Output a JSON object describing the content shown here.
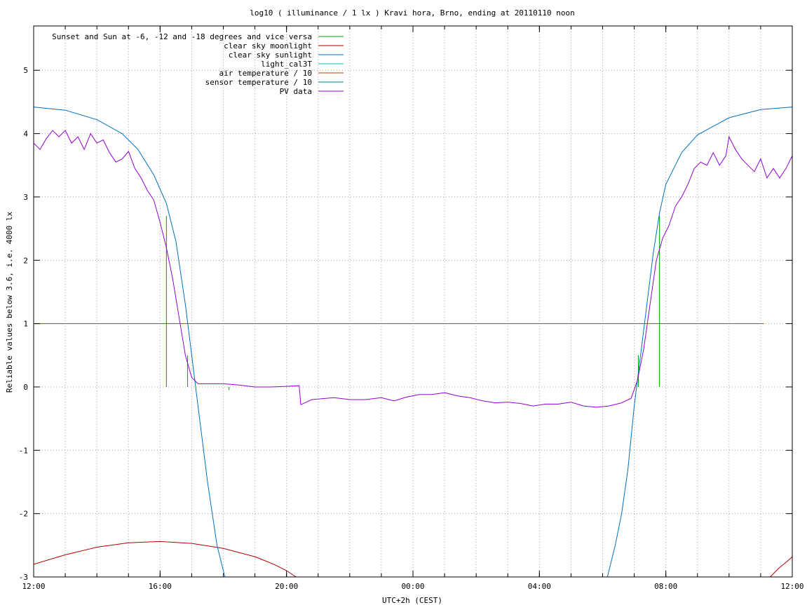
{
  "chart_data": {
    "type": "line",
    "title": "log10 ( illuminance / 1 lx ) Kravi hora, Brno, ending at 20110110 noon",
    "xlabel": "UTC+2h (CEST)",
    "ylabel": "Reliable values below 3.6, i.e. 4000 lx",
    "xlim": [
      12,
      36
    ],
    "ylim": [
      -3,
      5.7
    ],
    "grid": true,
    "legend_position": "top-left",
    "x_ticks": [
      {
        "value": 12,
        "label": "12:00"
      },
      {
        "value": 16,
        "label": "16:00"
      },
      {
        "value": 20,
        "label": "20:00"
      },
      {
        "value": 24,
        "label": "00:00"
      },
      {
        "value": 28,
        "label": "04:00"
      },
      {
        "value": 32,
        "label": "08:00"
      },
      {
        "value": 36,
        "label": "12:00"
      }
    ],
    "y_ticks": [
      {
        "value": -3,
        "label": "-3"
      },
      {
        "value": -2,
        "label": "-2"
      },
      {
        "value": -1,
        "label": "-1"
      },
      {
        "value": 0,
        "label": "0"
      },
      {
        "value": 1,
        "label": "1"
      },
      {
        "value": 2,
        "label": "2"
      },
      {
        "value": 3,
        "label": "3"
      },
      {
        "value": 4,
        "label": "4"
      },
      {
        "value": 5,
        "label": "5"
      }
    ],
    "series": [
      {
        "name": "Sunset and Sun at -6, -12 and -18 degrees and vice versa",
        "color": "#00a000",
        "style": "impulses",
        "points": [
          [
            16.2,
            2.7
          ],
          [
            16.87,
            0.5
          ],
          [
            17.52,
            0
          ],
          [
            18.18,
            -0.05
          ],
          [
            29.85,
            0
          ],
          [
            30.5,
            0
          ],
          [
            31.13,
            0.5
          ],
          [
            31.8,
            2.7
          ]
        ]
      },
      {
        "name": "clear sky moonlight",
        "color": "#b00000",
        "style": "line",
        "segments": [
          [
            [
              12,
              -2.8
            ],
            [
              13,
              -2.65
            ],
            [
              14,
              -2.53
            ],
            [
              15,
              -2.46
            ],
            [
              16,
              -2.44
            ],
            [
              17,
              -2.47
            ],
            [
              18,
              -2.55
            ],
            [
              19,
              -2.68
            ],
            [
              19.6,
              -2.8
            ],
            [
              20,
              -2.9
            ],
            [
              20.3,
              -3.0
            ]
          ],
          [
            [
              35.3,
              -3.0
            ],
            [
              35.6,
              -2.85
            ],
            [
              35.85,
              -2.75
            ],
            [
              36,
              -2.68
            ]
          ]
        ]
      },
      {
        "name": "clear sky sunlight",
        "color": "#0070c0",
        "style": "line",
        "segments": [
          [
            [
              12,
              4.42
            ],
            [
              13,
              4.37
            ],
            [
              14,
              4.22
            ],
            [
              14.8,
              4.0
            ],
            [
              15.3,
              3.75
            ],
            [
              15.8,
              3.35
            ],
            [
              16.2,
              2.9
            ],
            [
              16.5,
              2.3
            ],
            [
              16.8,
              1.3
            ],
            [
              17.0,
              0.5
            ],
            [
              17.2,
              -0.3
            ],
            [
              17.5,
              -1.5
            ],
            [
              17.8,
              -2.5
            ],
            [
              18.05,
              -3.0
            ]
          ],
          [
            [
              30.15,
              -3.0
            ],
            [
              30.4,
              -2.5
            ],
            [
              30.6,
              -2.0
            ],
            [
              30.8,
              -1.3
            ],
            [
              31.0,
              -0.3
            ],
            [
              31.2,
              0.5
            ],
            [
              31.4,
              1.3
            ],
            [
              31.6,
              2.1
            ],
            [
              31.8,
              2.75
            ],
            [
              32.0,
              3.2
            ],
            [
              32.5,
              3.7
            ],
            [
              33,
              3.98
            ],
            [
              34,
              4.25
            ],
            [
              35,
              4.38
            ],
            [
              36,
              4.42
            ]
          ]
        ]
      },
      {
        "name": "light_cal3T",
        "color": "#00c0c0",
        "style": "line",
        "segments": []
      },
      {
        "name": "air temperature / 10",
        "color": "#c04000",
        "style": "line",
        "segments": [
          [
            [
              12,
              1.0
            ],
            [
              35.1,
              1.0
            ]
          ]
        ]
      },
      {
        "name": "sensor temperature / 10",
        "color": "#008080",
        "style": "line",
        "segments": []
      },
      {
        "name": "PV data",
        "color": "#9400d3",
        "style": "line",
        "segments": [
          [
            [
              12,
              3.85
            ],
            [
              12.2,
              3.75
            ],
            [
              12.4,
              3.92
            ],
            [
              12.6,
              4.05
            ],
            [
              12.8,
              3.95
            ],
            [
              13.0,
              4.05
            ],
            [
              13.2,
              3.85
            ],
            [
              13.4,
              3.95
            ],
            [
              13.6,
              3.75
            ],
            [
              13.8,
              4.0
            ],
            [
              14.0,
              3.85
            ],
            [
              14.2,
              3.9
            ],
            [
              14.4,
              3.7
            ],
            [
              14.6,
              3.55
            ],
            [
              14.8,
              3.6
            ],
            [
              15.0,
              3.72
            ],
            [
              15.2,
              3.45
            ],
            [
              15.4,
              3.3
            ],
            [
              15.6,
              3.1
            ],
            [
              15.8,
              2.95
            ],
            [
              16.0,
              2.6
            ],
            [
              16.2,
              2.2
            ],
            [
              16.4,
              1.7
            ],
            [
              16.6,
              1.1
            ],
            [
              16.8,
              0.5
            ],
            [
              17.0,
              0.15
            ],
            [
              17.2,
              0.05
            ],
            [
              17.5,
              0.05
            ],
            [
              18.0,
              0.05
            ],
            [
              18.5,
              0.03
            ],
            [
              19.0,
              0.0
            ],
            [
              19.5,
              0.0
            ],
            [
              20.0,
              0.01
            ],
            [
              20.4,
              0.02
            ],
            [
              20.45,
              -0.28
            ],
            [
              20.8,
              -0.2
            ],
            [
              21.5,
              -0.17
            ],
            [
              22.0,
              -0.2
            ],
            [
              22.5,
              -0.2
            ],
            [
              23.0,
              -0.17
            ],
            [
              23.4,
              -0.22
            ],
            [
              23.8,
              -0.16
            ],
            [
              24.2,
              -0.12
            ],
            [
              24.6,
              -0.12
            ],
            [
              25.0,
              -0.09
            ],
            [
              25.4,
              -0.14
            ],
            [
              25.8,
              -0.17
            ],
            [
              26.2,
              -0.22
            ],
            [
              26.6,
              -0.25
            ],
            [
              27.0,
              -0.24
            ],
            [
              27.4,
              -0.26
            ],
            [
              27.8,
              -0.3
            ],
            [
              28.2,
              -0.27
            ],
            [
              28.6,
              -0.27
            ],
            [
              29.0,
              -0.24
            ],
            [
              29.4,
              -0.3
            ],
            [
              29.8,
              -0.32
            ],
            [
              30.2,
              -0.3
            ],
            [
              30.6,
              -0.25
            ],
            [
              30.9,
              -0.18
            ],
            [
              31.1,
              0.1
            ],
            [
              31.3,
              0.6
            ],
            [
              31.5,
              1.3
            ],
            [
              31.7,
              2.0
            ],
            [
              31.9,
              2.35
            ],
            [
              32.1,
              2.55
            ],
            [
              32.3,
              2.85
            ],
            [
              32.5,
              3.0
            ],
            [
              32.7,
              3.2
            ],
            [
              32.9,
              3.45
            ],
            [
              33.1,
              3.55
            ],
            [
              33.3,
              3.5
            ],
            [
              33.5,
              3.7
            ],
            [
              33.7,
              3.5
            ],
            [
              33.9,
              3.65
            ],
            [
              34.0,
              3.95
            ],
            [
              34.2,
              3.75
            ],
            [
              34.4,
              3.6
            ],
            [
              34.6,
              3.5
            ],
            [
              34.8,
              3.4
            ],
            [
              35.0,
              3.6
            ],
            [
              35.2,
              3.3
            ],
            [
              35.4,
              3.45
            ],
            [
              35.6,
              3.3
            ],
            [
              35.8,
              3.45
            ],
            [
              36.0,
              3.65
            ]
          ]
        ]
      }
    ]
  }
}
